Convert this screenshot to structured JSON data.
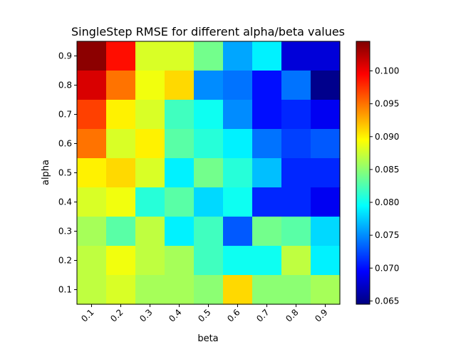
{
  "chart_data": {
    "type": "heatmap",
    "title": "SingleStep RMSE for different alpha/beta values",
    "xlabel": "beta",
    "ylabel": "alpha",
    "x_categories": [
      "0.1",
      "0.2",
      "0.3",
      "0.4",
      "0.5",
      "0.6",
      "0.7",
      "0.8",
      "0.9"
    ],
    "y_categories": [
      "0.9",
      "0.8",
      "0.7",
      "0.6",
      "0.5",
      "0.4",
      "0.3",
      "0.2",
      "0.1"
    ],
    "values": [
      [
        0.104,
        0.099,
        0.088,
        0.088,
        0.084,
        0.076,
        0.079,
        0.068,
        0.068
      ],
      [
        0.101,
        0.095,
        0.089,
        0.091,
        0.075,
        0.074,
        0.07,
        0.074,
        0.065
      ],
      [
        0.097,
        0.09,
        0.088,
        0.082,
        0.08,
        0.075,
        0.07,
        0.071,
        0.069
      ],
      [
        0.095,
        0.088,
        0.09,
        0.083,
        0.081,
        0.079,
        0.074,
        0.072,
        0.073
      ],
      [
        0.09,
        0.091,
        0.088,
        0.079,
        0.084,
        0.081,
        0.077,
        0.071,
        0.071
      ],
      [
        0.088,
        0.089,
        0.081,
        0.083,
        0.078,
        0.08,
        0.071,
        0.071,
        0.069
      ],
      [
        0.086,
        0.083,
        0.087,
        0.079,
        0.082,
        0.073,
        0.084,
        0.083,
        0.078
      ],
      [
        0.087,
        0.089,
        0.087,
        0.086,
        0.082,
        0.08,
        0.08,
        0.087,
        0.079
      ],
      [
        0.087,
        0.088,
        0.086,
        0.086,
        0.085,
        0.091,
        0.085,
        0.085,
        0.086
      ]
    ],
    "colormap": "jet",
    "vmin": 0.0645,
    "vmax": 0.1045,
    "colorbar_ticks": [
      0.065,
      0.07,
      0.075,
      0.08,
      0.085,
      0.09,
      0.095,
      0.1
    ],
    "colorbar_tick_labels": [
      "0.065",
      "0.070",
      "0.075",
      "0.080",
      "0.085",
      "0.090",
      "0.095",
      "0.100"
    ]
  }
}
